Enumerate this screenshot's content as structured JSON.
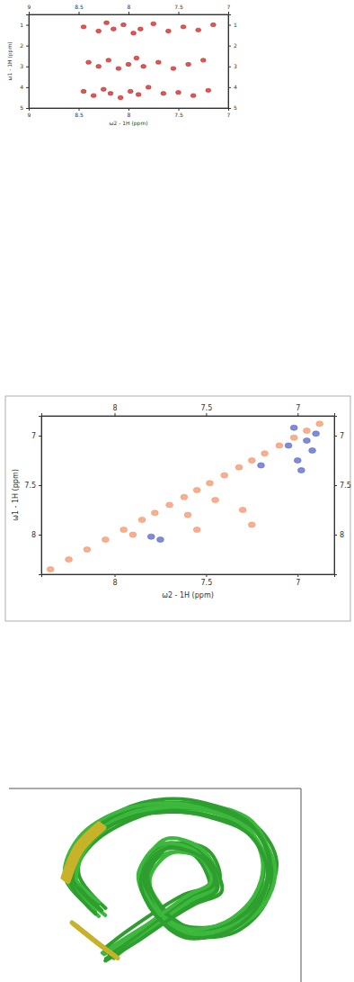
{
  "chart_data": [
    {
      "type": "scatter",
      "x_label": "ω2 - 1H (ppm)",
      "y_label": "ω1 - 1H (ppm)",
      "xlim": [
        9.0,
        7.0
      ],
      "xticks": [
        9,
        8.5,
        8,
        7.5,
        7
      ],
      "ylim": [
        0.5,
        5
      ],
      "yticks": [
        1,
        2,
        3,
        4,
        5
      ],
      "series": [
        {
          "color": "#cc2222",
          "marker": "circle",
          "x": [
            8.45,
            8.3,
            8.22,
            8.15,
            8.05,
            7.95,
            7.88,
            7.75,
            7.6,
            7.45,
            7.3,
            7.15,
            8.4,
            8.3,
            8.2,
            8.1,
            8.0,
            7.92,
            7.85,
            7.7,
            7.55,
            7.4,
            7.25,
            8.45,
            8.35,
            8.25,
            8.18,
            8.08,
            7.98,
            7.9,
            7.8,
            7.65,
            7.5,
            7.35,
            7.2
          ],
          "values": [
            1.1,
            1.3,
            0.9,
            1.2,
            1.0,
            1.4,
            1.2,
            0.95,
            1.3,
            1.1,
            1.25,
            1.0,
            2.8,
            3.0,
            2.7,
            3.1,
            2.9,
            2.6,
            3.0,
            2.8,
            3.1,
            2.9,
            2.7,
            4.2,
            4.4,
            4.1,
            4.3,
            4.5,
            4.2,
            4.35,
            4.0,
            4.3,
            4.25,
            4.4,
            4.15
          ]
        }
      ]
    },
    {
      "type": "scatter",
      "x_label": "ω2 - 1H (ppm)",
      "y_label": "ω1 - 1H (ppm)",
      "xlim": [
        8.4,
        6.8
      ],
      "xticks": [
        8,
        7.5,
        7
      ],
      "ylim": [
        6.8,
        8.4
      ],
      "yticks": [
        7,
        7.5,
        8
      ],
      "series": [
        {
          "color": "#f4946a",
          "marker": "circle",
          "x": [
            8.35,
            8.25,
            8.15,
            8.05,
            7.95,
            7.85,
            7.78,
            7.7,
            7.62,
            7.55,
            7.48,
            7.4,
            7.32,
            7.25,
            7.18,
            7.1,
            7.02,
            6.95,
            6.88,
            7.55,
            7.3,
            7.25,
            7.9,
            7.45,
            7.6
          ],
          "values": [
            8.35,
            8.25,
            8.15,
            8.05,
            7.95,
            7.85,
            7.78,
            7.7,
            7.62,
            7.55,
            7.48,
            7.4,
            7.32,
            7.25,
            7.18,
            7.1,
            7.02,
            6.95,
            6.88,
            7.95,
            7.75,
            7.9,
            8.0,
            7.65,
            7.8
          ]
        },
        {
          "color": "#5566cc",
          "marker": "circle",
          "x": [
            7.02,
            6.95,
            6.92,
            7.0,
            6.9,
            7.05,
            7.8,
            7.75,
            7.2,
            6.98
          ],
          "values": [
            6.92,
            7.05,
            7.15,
            7.25,
            6.98,
            7.1,
            8.02,
            8.05,
            7.3,
            7.35
          ]
        }
      ]
    }
  ]
}
